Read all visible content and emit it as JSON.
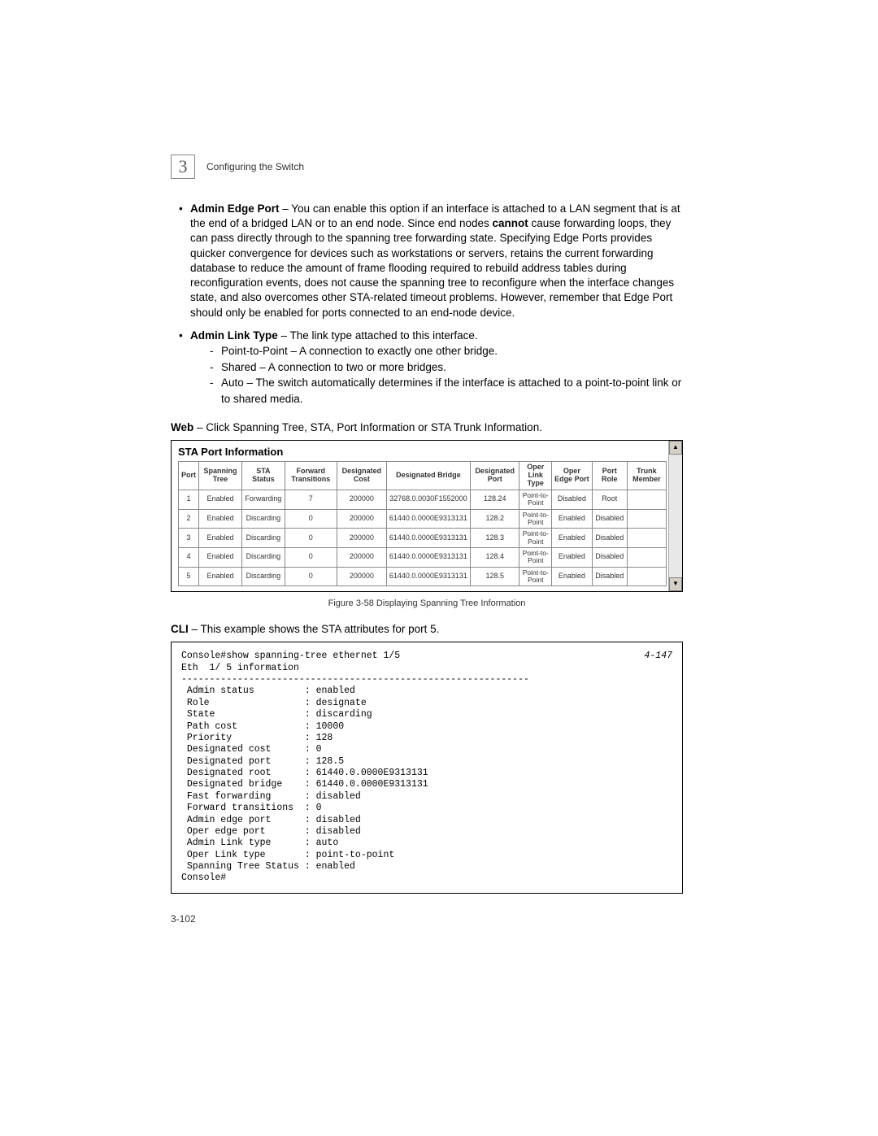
{
  "chapter": {
    "num": "3",
    "title": "Configuring the Switch"
  },
  "bullets": {
    "edgeport": {
      "label": "Admin Edge Port",
      "text_a": " – You can enable this option if an interface is attached to a LAN segment that is at the end of a bridged LAN or to an end node. Since end nodes ",
      "bold_mid": "cannot",
      "text_b": " cause forwarding loops, they can pass directly through to the spanning tree forwarding state. Specifying Edge Ports provides quicker convergence for devices such as workstations or servers, retains the current forwarding database to reduce the amount of frame flooding required to rebuild address tables during reconfiguration events, does not cause the spanning tree to reconfigure when the interface changes state, and also overcomes other STA-related timeout problems. However, remember that Edge Port should only be enabled for ports connected to an end-node device."
    },
    "linktype": {
      "label": "Admin Link Type",
      "text": " – The link type attached to this interface.",
      "subs": {
        "s1": "Point-to-Point – A connection to exactly one other bridge.",
        "s2": "Shared – A connection to two or more bridges.",
        "s3": "Auto – The switch automatically determines if the interface is attached to a point-to-point link or to shared media."
      }
    }
  },
  "web_line": {
    "bold": "Web",
    "text": " – Click Spanning Tree, STA, Port Information or STA Trunk Information."
  },
  "table": {
    "title": "STA Port Information",
    "headers": {
      "h0": "Port",
      "h1": "Spanning Tree",
      "h2": "STA Status",
      "h3": "Forward Transitions",
      "h4": "Designated Cost",
      "h5": "Designated Bridge",
      "h6": "Designated Port",
      "h7": "Oper Link Type",
      "h8": "Oper Edge Port",
      "h9": "Port Role",
      "h10": "Trunk Member"
    },
    "rows": [
      {
        "c0": "1",
        "c1": "Enabled",
        "c2": "Forwarding",
        "c3": "7",
        "c4": "200000",
        "c5": "32768.0.0030F1552000",
        "c6": "128.24",
        "c7": "Point-to-Point",
        "c8": "Disabled",
        "c9": "Root",
        "c10": ""
      },
      {
        "c0": "2",
        "c1": "Enabled",
        "c2": "Discarding",
        "c3": "0",
        "c4": "200000",
        "c5": "61440.0.0000E9313131",
        "c6": "128.2",
        "c7": "Point-to-Point",
        "c8": "Enabled",
        "c9": "Disabled",
        "c10": ""
      },
      {
        "c0": "3",
        "c1": "Enabled",
        "c2": "Discarding",
        "c3": "0",
        "c4": "200000",
        "c5": "61440.0.0000E9313131",
        "c6": "128.3",
        "c7": "Point-to-Point",
        "c8": "Enabled",
        "c9": "Disabled",
        "c10": ""
      },
      {
        "c0": "4",
        "c1": "Enabled",
        "c2": "Discarding",
        "c3": "0",
        "c4": "200000",
        "c5": "61440.0.0000E9313131",
        "c6": "128.4",
        "c7": "Point-to-Point",
        "c8": "Enabled",
        "c9": "Disabled",
        "c10": ""
      },
      {
        "c0": "5",
        "c1": "Enabled",
        "c2": "Discarding",
        "c3": "0",
        "c4": "200000",
        "c5": "61440.0.0000E9313131",
        "c6": "128.5",
        "c7": "Point-to-Point",
        "c8": "Enabled",
        "c9": "Disabled",
        "c10": ""
      }
    ]
  },
  "figure_caption": "Figure 3-58  Displaying Spanning Tree Information",
  "cli_line": {
    "bold": "CLI",
    "text": " – This example shows the STA attributes for port 5."
  },
  "cli": {
    "ref": "4-147",
    "text": "Console#show spanning-tree ethernet 1/5\nEth  1/ 5 information\n--------------------------------------------------------------\n Admin status         : enabled\n Role                 : designate\n State                : discarding\n Path cost            : 10000\n Priority             : 128\n Designated cost      : 0\n Designated port      : 128.5\n Designated root      : 61440.0.0000E9313131\n Designated bridge    : 61440.0.0000E9313131\n Fast forwarding      : disabled\n Forward transitions  : 0\n Admin edge port      : disabled\n Oper edge port       : disabled\n Admin Link type      : auto\n Oper Link type       : point-to-point\n Spanning Tree Status : enabled\nConsole#"
  },
  "page_num": "3-102"
}
